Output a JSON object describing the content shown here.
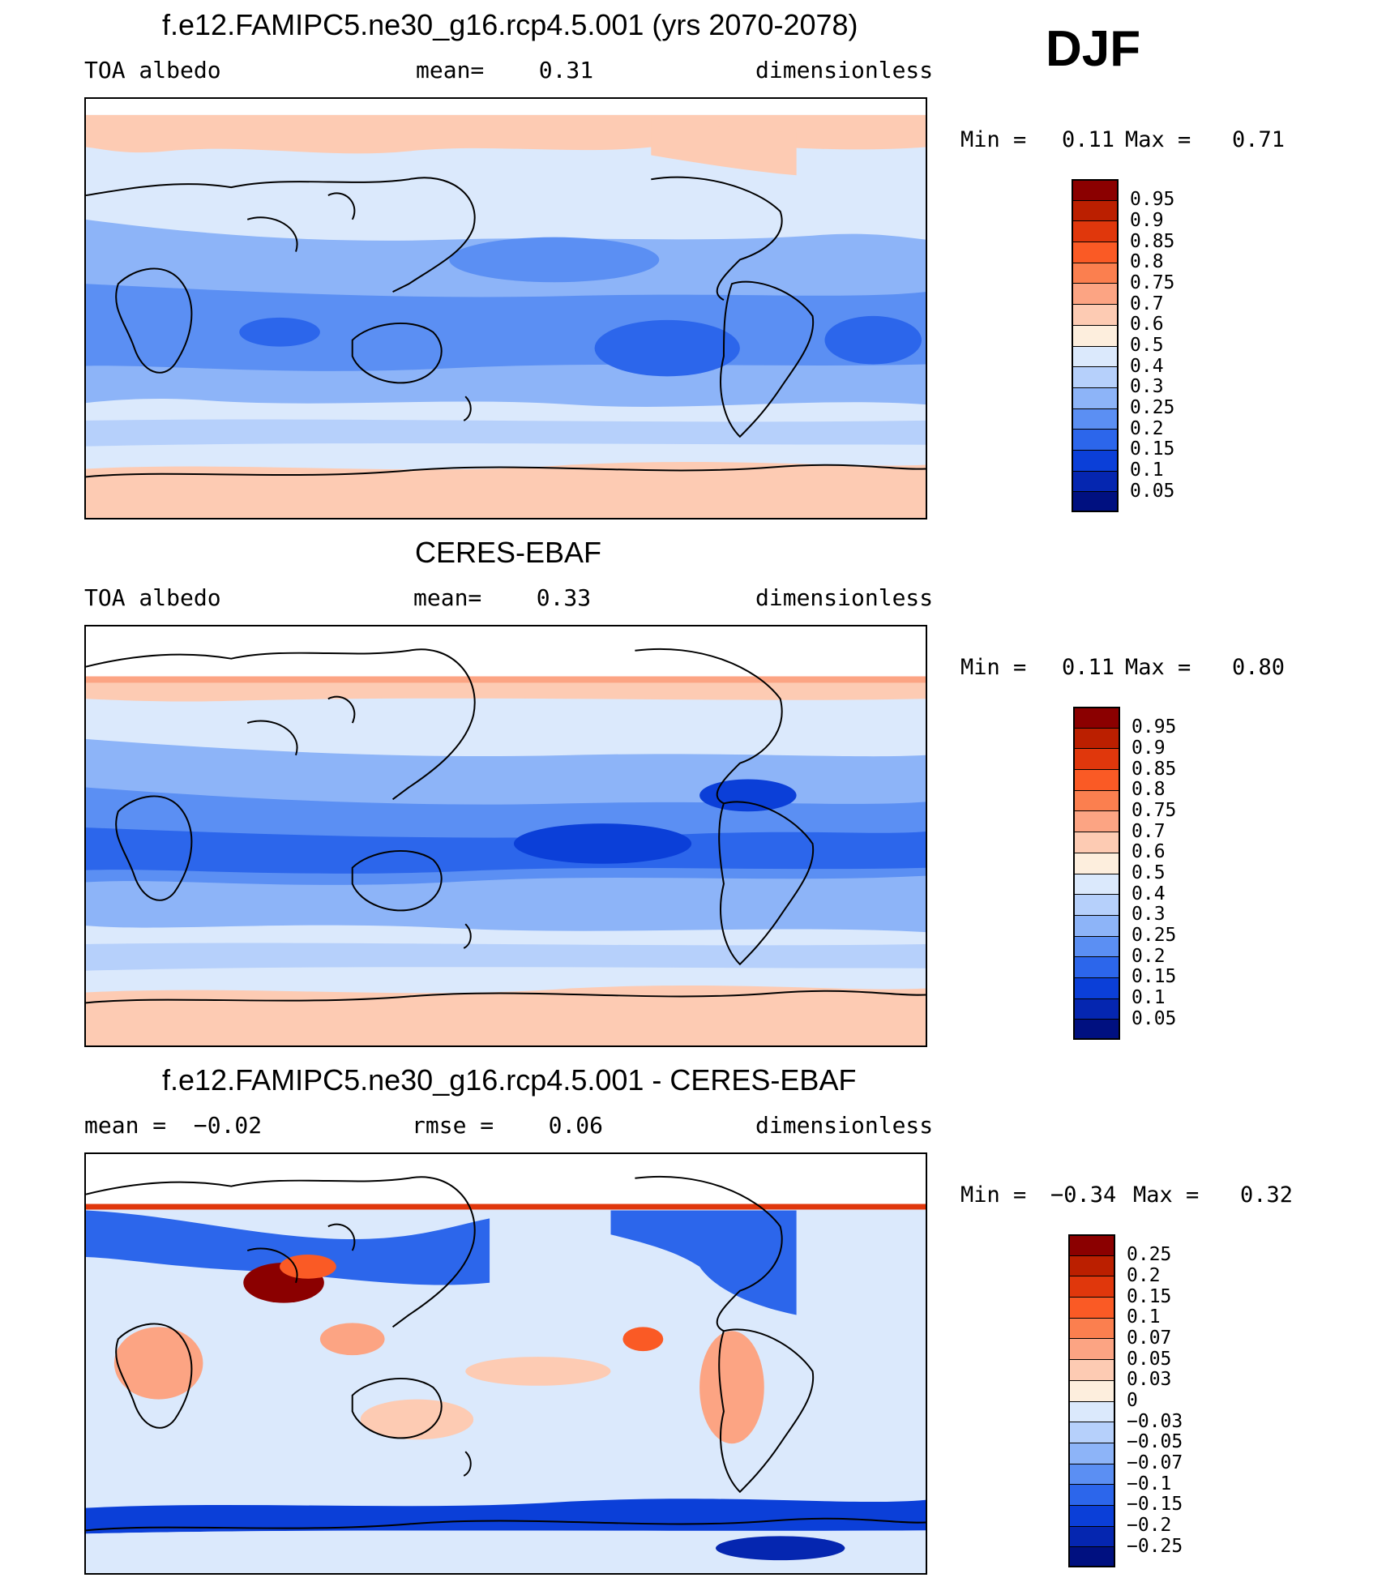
{
  "season": "DJF",
  "panels": [
    {
      "title": "f.e12.FAMIPC5.ne30_g16.rcp4.5.001 (yrs 2070-2078)",
      "left_label": "TOA albedo",
      "center_label": "mean=    0.31",
      "right_label": "dimensionless",
      "min_label": "Min =",
      "min_value": "0.11",
      "max_label": "Max =",
      "max_value": "0.71",
      "colorbar": {
        "labels": [
          "0.95",
          "0.9",
          "0.85",
          "0.8",
          "0.75",
          "0.7",
          "0.6",
          "0.5",
          "0.4",
          "0.3",
          "0.25",
          "0.2",
          "0.15",
          "0.1",
          "0.05"
        ],
        "colors": [
          "#8b0000",
          "#bb1f00",
          "#e0370c",
          "#fa5a25",
          "#fb7f4f",
          "#fca483",
          "#fdcbb3",
          "#fdeedd",
          "#dbe9fc",
          "#b6d0fb",
          "#8db4f8",
          "#5b8ff3",
          "#2c66eb",
          "#0b3fd8",
          "#0526b0",
          "#001080"
        ]
      }
    },
    {
      "title": "CERES-EBAF",
      "left_label": "TOA albedo",
      "center_label": "mean=    0.33",
      "right_label": "dimensionless",
      "min_label": "Min =",
      "min_value": "0.11",
      "max_label": "Max =",
      "max_value": "0.80",
      "colorbar": {
        "labels": [
          "0.95",
          "0.9",
          "0.85",
          "0.8",
          "0.75",
          "0.7",
          "0.6",
          "0.5",
          "0.4",
          "0.3",
          "0.25",
          "0.2",
          "0.15",
          "0.1",
          "0.05"
        ],
        "colors": [
          "#8b0000",
          "#bb1f00",
          "#e0370c",
          "#fa5a25",
          "#fb7f4f",
          "#fca483",
          "#fdcbb3",
          "#fdeedd",
          "#dbe9fc",
          "#b6d0fb",
          "#8db4f8",
          "#5b8ff3",
          "#2c66eb",
          "#0b3fd8",
          "#0526b0",
          "#001080"
        ]
      }
    },
    {
      "title": "f.e12.FAMIPC5.ne30_g16.rcp4.5.001 - CERES-EBAF",
      "left_label": "mean =  −0.02",
      "center_label": "rmse =    0.06",
      "right_label": "dimensionless",
      "min_label": "Min =",
      "min_value": "−0.34",
      "max_label": "Max =",
      "max_value": "0.32",
      "colorbar": {
        "labels": [
          "0.25",
          "0.2",
          "0.15",
          "0.1",
          "0.07",
          "0.05",
          "0.03",
          "0",
          "−0.03",
          "−0.05",
          "−0.07",
          "−0.1",
          "−0.15",
          "−0.2",
          "−0.25"
        ],
        "colors": [
          "#8b0000",
          "#bb1f00",
          "#e0370c",
          "#fa5a25",
          "#fb7f4f",
          "#fca483",
          "#fdcbb3",
          "#fdeedd",
          "#dbe9fc",
          "#b6d0fb",
          "#8db4f8",
          "#5b8ff3",
          "#2c66eb",
          "#0b3fd8",
          "#0526b0",
          "#001080"
        ]
      }
    }
  ]
}
